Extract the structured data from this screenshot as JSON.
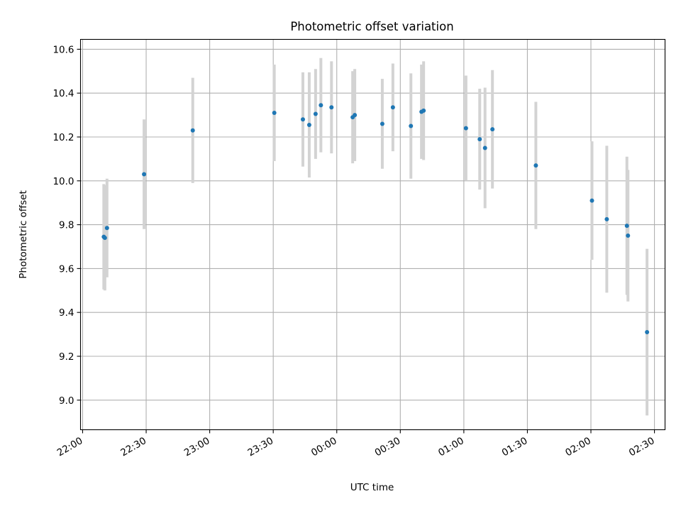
{
  "chart_data": {
    "type": "scatter",
    "title": "Photometric offset variation",
    "xlabel": "UTC time",
    "ylabel": "Photometric offset",
    "xlim": [
      "2000-01-01T21:59:00",
      "2000-01-02T02:35:00"
    ],
    "ylim": [
      8.865,
      10.645
    ],
    "grid": true,
    "x_ticks": [
      "22:00",
      "22:30",
      "23:00",
      "23:30",
      "00:00",
      "00:30",
      "01:00",
      "01:30",
      "02:00",
      "02:30"
    ],
    "y_ticks": [
      "9.0",
      "9.2",
      "9.4",
      "9.6",
      "9.8",
      "10.0",
      "10.2",
      "10.4",
      "10.6"
    ],
    "colors": {
      "point": "#1f77b4",
      "errorbar": "#d3d3d3",
      "grid": "#b0b0b0"
    },
    "series": [
      {
        "points": [
          {
            "x": "2000-01-01T22:10:00",
            "y": 9.745,
            "err": 0.24
          },
          {
            "x": "2000-01-01T22:10:30",
            "y": 9.74,
            "err": 0.24
          },
          {
            "x": "2000-01-01T22:11:30",
            "y": 9.785,
            "err": 0.225
          },
          {
            "x": "2000-01-01T22:29:00",
            "y": 10.03,
            "err": 0.25
          },
          {
            "x": "2000-01-01T22:52:00",
            "y": 10.23,
            "err": 0.24
          },
          {
            "x": "2000-01-01T23:30:30",
            "y": 10.31,
            "err": 0.22
          },
          {
            "x": "2000-01-01T23:44:00",
            "y": 10.28,
            "err": 0.215
          },
          {
            "x": "2000-01-01T23:47:00",
            "y": 10.255,
            "err": 0.24
          },
          {
            "x": "2000-01-01T23:50:00",
            "y": 10.305,
            "err": 0.205
          },
          {
            "x": "2000-01-01T23:52:30",
            "y": 10.345,
            "err": 0.215
          },
          {
            "x": "2000-01-01T23:57:30",
            "y": 10.335,
            "err": 0.21
          },
          {
            "x": "2000-01-02T00:07:30",
            "y": 10.29,
            "err": 0.21
          },
          {
            "x": "2000-01-02T00:08:30",
            "y": 10.3,
            "err": 0.21
          },
          {
            "x": "2000-01-02T00:21:30",
            "y": 10.26,
            "err": 0.205
          },
          {
            "x": "2000-01-02T00:26:30",
            "y": 10.335,
            "err": 0.2
          },
          {
            "x": "2000-01-02T00:35:00",
            "y": 10.25,
            "err": 0.24
          },
          {
            "x": "2000-01-02T00:40:00",
            "y": 10.315,
            "err": 0.215
          },
          {
            "x": "2000-01-02T00:41:00",
            "y": 10.32,
            "err": 0.225
          },
          {
            "x": "2000-01-02T01:01:00",
            "y": 10.24,
            "err": 0.24
          },
          {
            "x": "2000-01-02T01:07:30",
            "y": 10.19,
            "err": 0.23
          },
          {
            "x": "2000-01-02T01:10:00",
            "y": 10.15,
            "err": 0.275
          },
          {
            "x": "2000-01-02T01:13:30",
            "y": 10.235,
            "err": 0.27
          },
          {
            "x": "2000-01-02T01:34:00",
            "y": 10.07,
            "err": 0.29
          },
          {
            "x": "2000-01-02T02:00:30",
            "y": 9.91,
            "err": 0.27
          },
          {
            "x": "2000-01-02T02:07:30",
            "y": 9.825,
            "err": 0.335
          },
          {
            "x": "2000-01-02T02:17:00",
            "y": 9.795,
            "err": 0.315
          },
          {
            "x": "2000-01-02T02:17:30",
            "y": 9.75,
            "err": 0.3
          },
          {
            "x": "2000-01-02T02:26:30",
            "y": 9.31,
            "err": 0.38
          }
        ]
      }
    ]
  }
}
